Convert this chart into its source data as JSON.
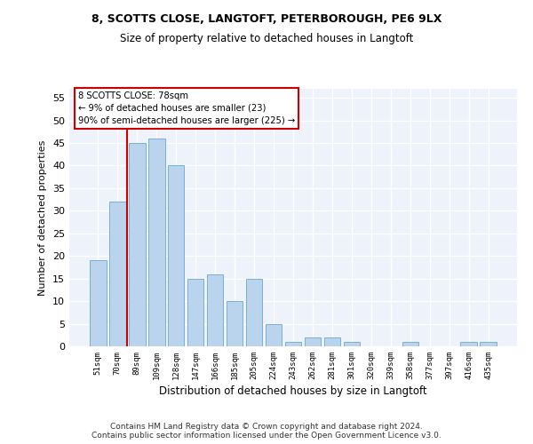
{
  "title1": "8, SCOTTS CLOSE, LANGTOFT, PETERBOROUGH, PE6 9LX",
  "title2": "Size of property relative to detached houses in Langtoft",
  "xlabel": "Distribution of detached houses by size in Langtoft",
  "ylabel": "Number of detached properties",
  "categories": [
    "51sqm",
    "70sqm",
    "89sqm",
    "109sqm",
    "128sqm",
    "147sqm",
    "166sqm",
    "185sqm",
    "205sqm",
    "224sqm",
    "243sqm",
    "262sqm",
    "281sqm",
    "301sqm",
    "320sqm",
    "339sqm",
    "358sqm",
    "377sqm",
    "397sqm",
    "416sqm",
    "435sqm"
  ],
  "values": [
    19,
    32,
    45,
    46,
    40,
    15,
    16,
    10,
    15,
    5,
    1,
    2,
    2,
    1,
    0,
    0,
    1,
    0,
    0,
    1,
    1
  ],
  "bar_color": "#bad4ed",
  "bar_edge_color": "#7aafd4",
  "ylim": [
    0,
    57
  ],
  "yticks": [
    0,
    5,
    10,
    15,
    20,
    25,
    30,
    35,
    40,
    45,
    50,
    55
  ],
  "property_line_x": 1.5,
  "annotation_line1": "8 SCOTTS CLOSE: 78sqm",
  "annotation_line2": "← 9% of detached houses are smaller (23)",
  "annotation_line3": "90% of semi-detached houses are larger (225) →",
  "footer_full": "Contains HM Land Registry data © Crown copyright and database right 2024.\nContains public sector information licensed under the Open Government Licence v3.0.",
  "annotation_box_edge": "#cc0000",
  "line_color": "#cc0000",
  "background_color": "#eef2fb",
  "grid_color": "#ffffff"
}
